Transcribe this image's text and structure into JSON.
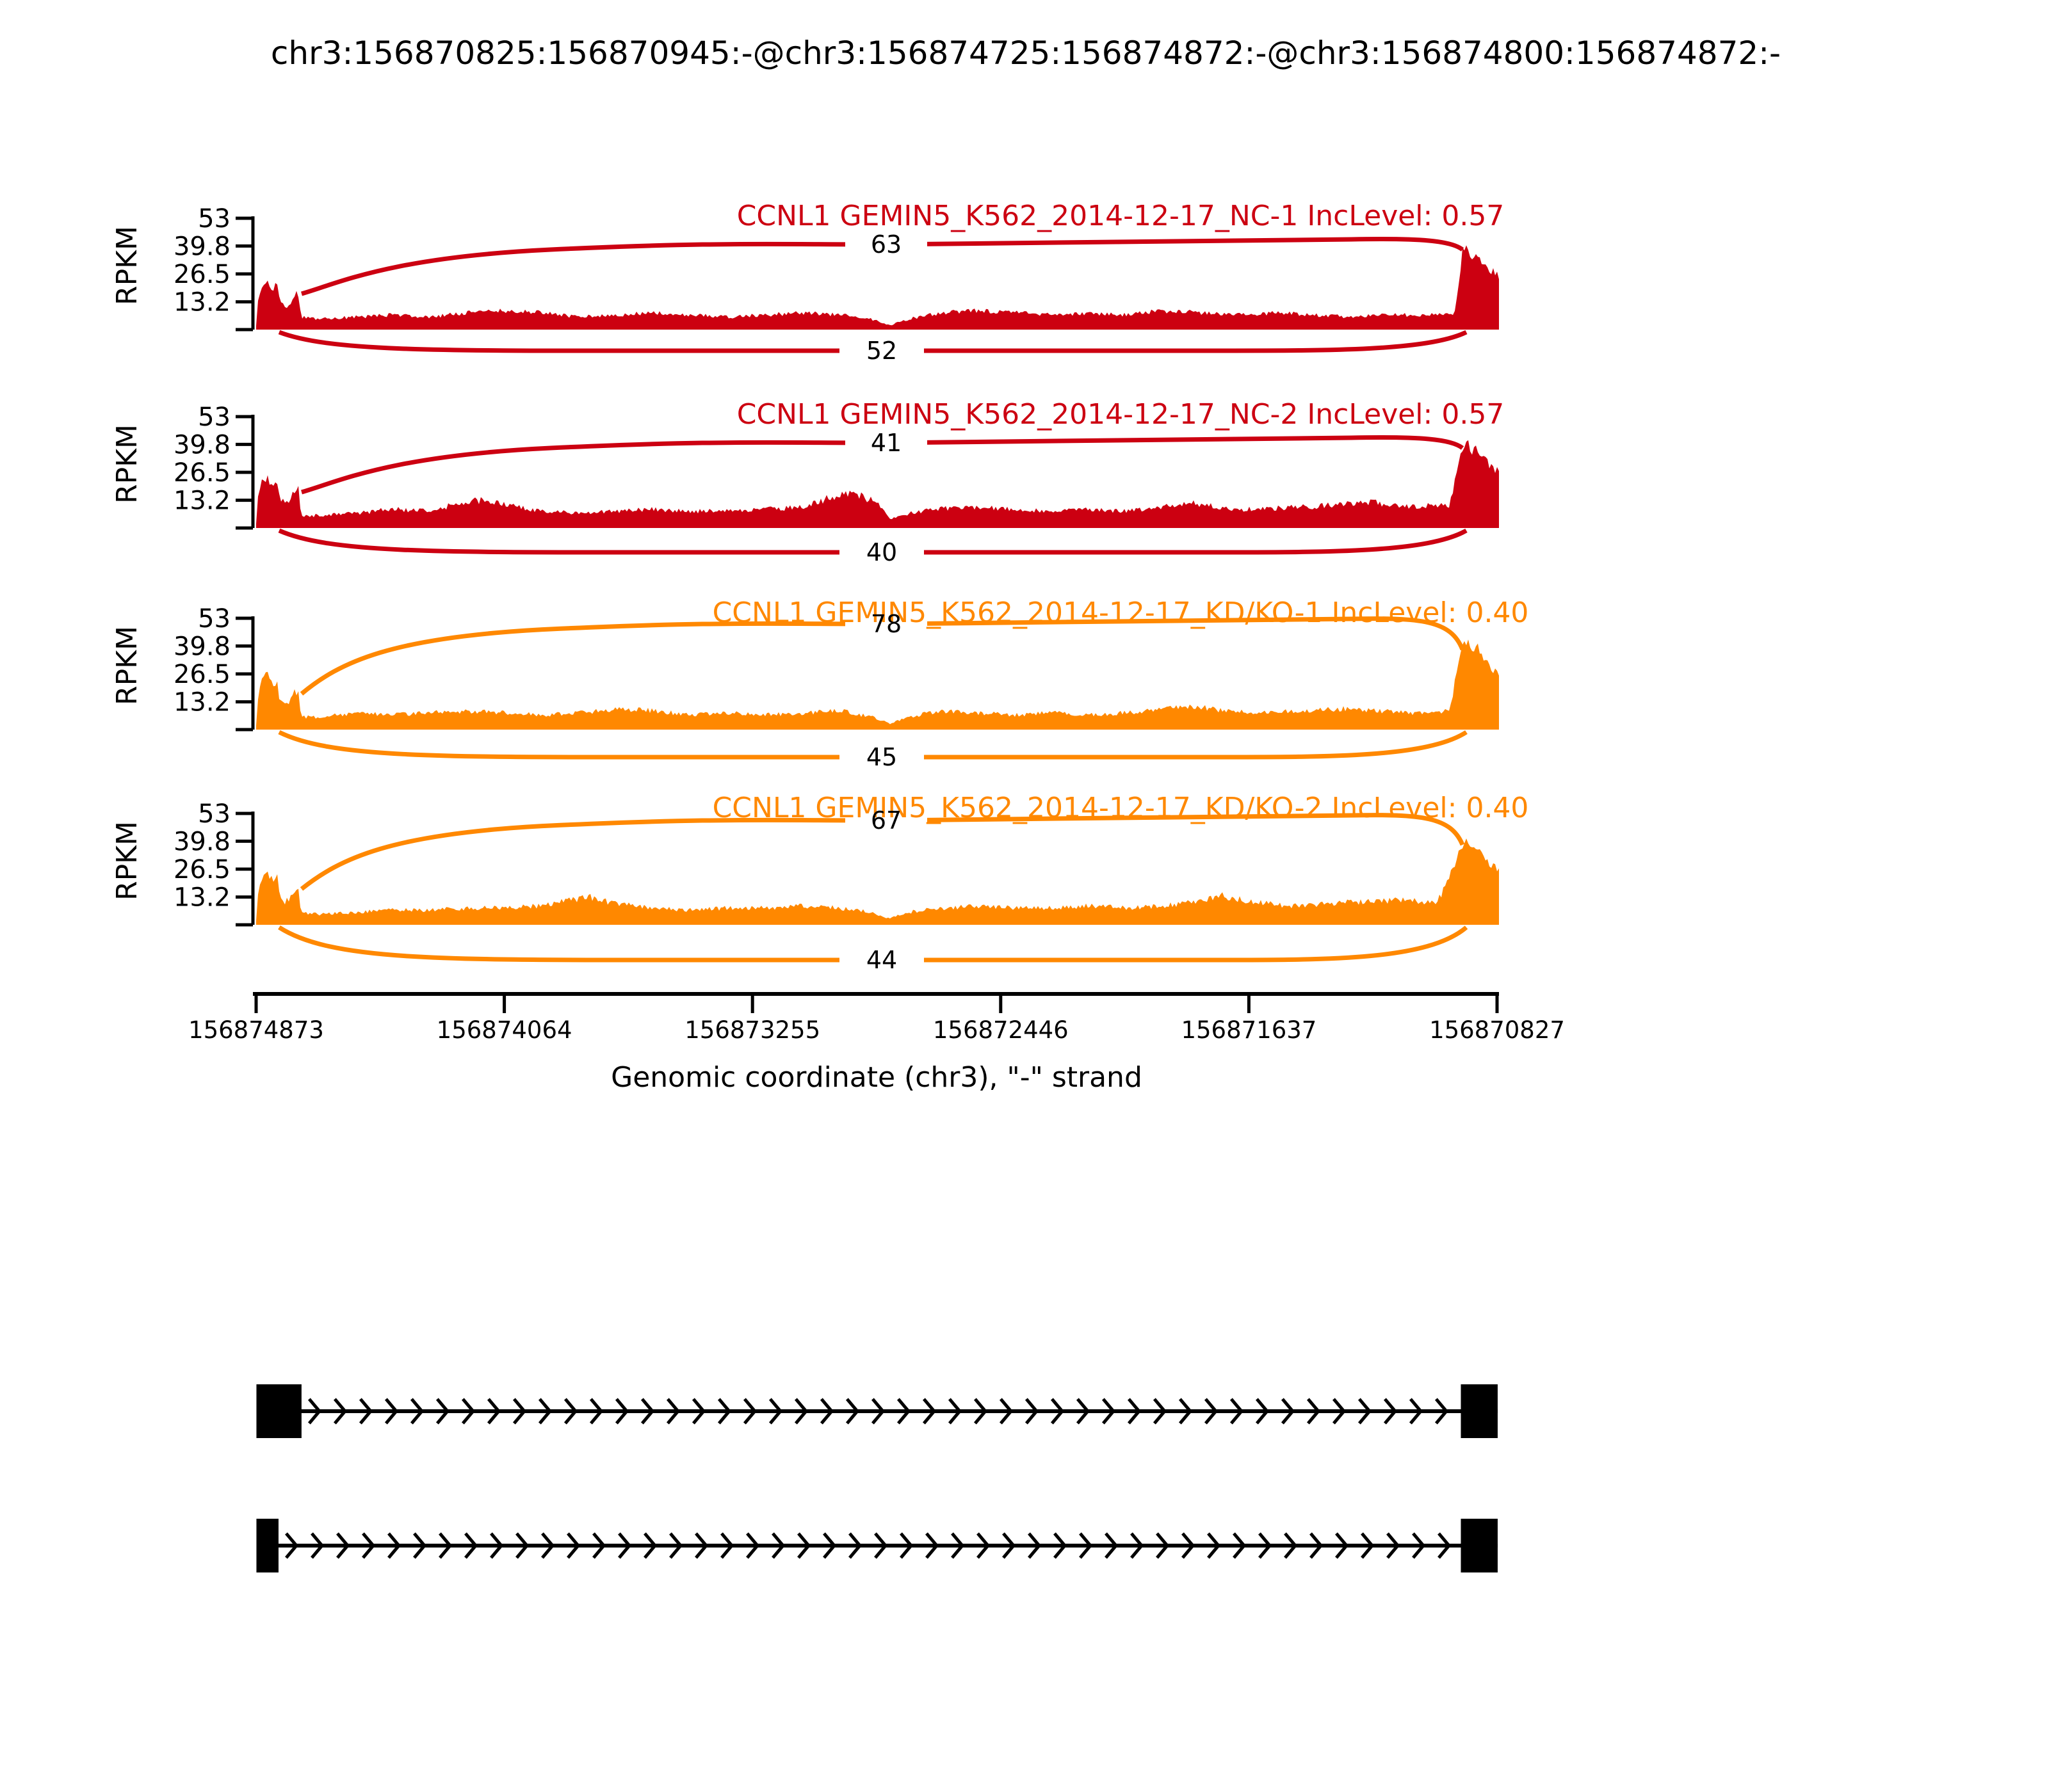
{
  "figure": {
    "title": "chr3:156870825:156870945:-@chr3:156874725:156874872:-@chr3:156874800:156874872:-",
    "background": "#ffffff",
    "text_color": "#000000"
  },
  "y_axis": {
    "label": "RPKM",
    "tick_labels": [
      "13.2",
      "26.5",
      "39.8",
      "53"
    ],
    "tick_values": [
      13.2,
      26.5,
      39.8,
      53
    ],
    "max": 53
  },
  "x_axis": {
    "label": "Genomic coordinate (chr3), \"-\" strand",
    "tick_labels": [
      "156874873",
      "156874064",
      "156873255",
      "156872446",
      "156871637",
      "156870827"
    ]
  },
  "chart_data": {
    "type": "area",
    "subtype": "rmats-sashimi",
    "gene": "CCNL1",
    "chromosome": "chr3",
    "strand": "-",
    "x_ticks_bp": [
      156874873,
      156874064,
      156873255,
      156872446,
      156871637,
      156870827
    ],
    "rpkm_ticks": [
      13.2,
      26.5,
      39.8,
      53
    ],
    "ylim": [
      0,
      53
    ],
    "nc_color": "#CC0011",
    "kd_color": "#FF8800",
    "tracks": [
      {
        "label": "CCNL1 GEMIN5_K562_2014-12-17_NC-1 IncLevel: 0.57",
        "sample": "NC-1",
        "inc_level": 0.57,
        "color": "#CC0011",
        "junction_reads_top": 63,
        "junction_reads_bottom": 52,
        "arc_top_offset": 133,
        "arc_bottom_offset": 33,
        "coverage_envelope": [
          [
            0,
            2
          ],
          [
            0.002,
            16
          ],
          [
            0.005,
            21
          ],
          [
            0.009,
            22
          ],
          [
            0.013,
            20
          ],
          [
            0.017,
            21
          ],
          [
            0.019,
            13
          ],
          [
            0.023,
            11
          ],
          [
            0.027,
            12
          ],
          [
            0.03,
            16
          ],
          [
            0.034,
            17
          ],
          [
            0.036,
            6
          ],
          [
            0.05,
            5
          ],
          [
            0.08,
            6
          ],
          [
            0.11,
            7
          ],
          [
            0.14,
            6
          ],
          [
            0.17,
            8
          ],
          [
            0.2,
            9
          ],
          [
            0.23,
            8
          ],
          [
            0.26,
            6
          ],
          [
            0.29,
            7
          ],
          [
            0.32,
            8
          ],
          [
            0.35,
            7
          ],
          [
            0.38,
            6
          ],
          [
            0.41,
            7
          ],
          [
            0.44,
            8
          ],
          [
            0.47,
            7
          ],
          [
            0.495,
            5
          ],
          [
            0.51,
            2
          ],
          [
            0.525,
            5
          ],
          [
            0.55,
            8
          ],
          [
            0.58,
            9
          ],
          [
            0.61,
            8
          ],
          [
            0.64,
            7
          ],
          [
            0.67,
            8
          ],
          [
            0.7,
            7
          ],
          [
            0.73,
            9
          ],
          [
            0.76,
            8
          ],
          [
            0.79,
            7
          ],
          [
            0.82,
            8
          ],
          [
            0.85,
            7
          ],
          [
            0.88,
            6
          ],
          [
            0.91,
            7
          ],
          [
            0.94,
            7
          ],
          [
            0.965,
            8
          ],
          [
            0.9706,
            37
          ],
          [
            0.974,
            39
          ],
          [
            0.978,
            35
          ],
          [
            0.982,
            37
          ],
          [
            0.986,
            33
          ],
          [
            0.99,
            30
          ],
          [
            0.994,
            28
          ],
          [
            1,
            25
          ]
        ]
      },
      {
        "label": "CCNL1 GEMIN5_K562_2014-12-17_NC-2 IncLevel: 0.57",
        "sample": "NC-2",
        "inc_level": 0.57,
        "color": "#CC0011",
        "junction_reads_top": 41,
        "junction_reads_bottom": 40,
        "arc_top_offset": 133,
        "arc_bottom_offset": 38,
        "coverage_envelope": [
          [
            0,
            2
          ],
          [
            0.002,
            17
          ],
          [
            0.005,
            23
          ],
          [
            0.009,
            24
          ],
          [
            0.013,
            21
          ],
          [
            0.017,
            22
          ],
          [
            0.019,
            14
          ],
          [
            0.023,
            12
          ],
          [
            0.027,
            13
          ],
          [
            0.03,
            17
          ],
          [
            0.034,
            18
          ],
          [
            0.036,
            6
          ],
          [
            0.05,
            6
          ],
          [
            0.08,
            7
          ],
          [
            0.11,
            9
          ],
          [
            0.14,
            8
          ],
          [
            0.165,
            12
          ],
          [
            0.18,
            13
          ],
          [
            0.2,
            11
          ],
          [
            0.23,
            8
          ],
          [
            0.26,
            7
          ],
          [
            0.29,
            8
          ],
          [
            0.32,
            9
          ],
          [
            0.35,
            8
          ],
          [
            0.38,
            8
          ],
          [
            0.41,
            9
          ],
          [
            0.44,
            10
          ],
          [
            0.46,
            14
          ],
          [
            0.48,
            17
          ],
          [
            0.5,
            12
          ],
          [
            0.51,
            4
          ],
          [
            0.525,
            7
          ],
          [
            0.55,
            9
          ],
          [
            0.58,
            10
          ],
          [
            0.61,
            9
          ],
          [
            0.64,
            8
          ],
          [
            0.67,
            9
          ],
          [
            0.7,
            8
          ],
          [
            0.73,
            10
          ],
          [
            0.755,
            12
          ],
          [
            0.78,
            9
          ],
          [
            0.81,
            9
          ],
          [
            0.84,
            10
          ],
          [
            0.87,
            11
          ],
          [
            0.9,
            12
          ],
          [
            0.93,
            10
          ],
          [
            0.96,
            11
          ],
          [
            0.9706,
            38
          ],
          [
            0.975,
            40
          ],
          [
            0.979,
            36
          ],
          [
            0.983,
            38
          ],
          [
            0.987,
            34
          ],
          [
            0.991,
            31
          ],
          [
            0.995,
            29
          ],
          [
            1,
            26
          ]
        ]
      },
      {
        "label": "CCNL1 GEMIN5_K562_2014-12-17_KD/KO-1 IncLevel: 0.40",
        "sample": "KD/KO-1",
        "inc_level": 0.4,
        "color": "#FF8800",
        "junction_reads_top": 78,
        "junction_reads_bottom": 45,
        "arc_top_offset": 165,
        "arc_bottom_offset": 43,
        "coverage_envelope": [
          [
            0,
            2
          ],
          [
            0.002,
            18
          ],
          [
            0.005,
            25
          ],
          [
            0.009,
            26
          ],
          [
            0.013,
            22
          ],
          [
            0.017,
            23
          ],
          [
            0.019,
            14
          ],
          [
            0.023,
            12
          ],
          [
            0.027,
            13
          ],
          [
            0.03,
            17
          ],
          [
            0.034,
            18
          ],
          [
            0.036,
            6
          ],
          [
            0.05,
            6
          ],
          [
            0.08,
            8
          ],
          [
            0.11,
            7
          ],
          [
            0.14,
            8
          ],
          [
            0.17,
            9
          ],
          [
            0.2,
            8
          ],
          [
            0.23,
            7
          ],
          [
            0.26,
            8
          ],
          [
            0.29,
            10
          ],
          [
            0.32,
            9
          ],
          [
            0.35,
            7
          ],
          [
            0.38,
            8
          ],
          [
            0.41,
            7
          ],
          [
            0.44,
            8
          ],
          [
            0.47,
            9
          ],
          [
            0.495,
            6
          ],
          [
            0.51,
            3
          ],
          [
            0.525,
            6
          ],
          [
            0.55,
            9
          ],
          [
            0.58,
            8
          ],
          [
            0.61,
            7
          ],
          [
            0.64,
            8
          ],
          [
            0.67,
            7
          ],
          [
            0.7,
            8
          ],
          [
            0.73,
            10
          ],
          [
            0.755,
            11
          ],
          [
            0.78,
            9
          ],
          [
            0.81,
            8
          ],
          [
            0.84,
            9
          ],
          [
            0.87,
            10
          ],
          [
            0.9,
            9
          ],
          [
            0.93,
            8
          ],
          [
            0.96,
            9
          ],
          [
            0.9706,
            40
          ],
          [
            0.975,
            42
          ],
          [
            0.979,
            37
          ],
          [
            0.983,
            39
          ],
          [
            0.987,
            34
          ],
          [
            0.991,
            31
          ],
          [
            0.995,
            29
          ],
          [
            1,
            27
          ]
        ]
      },
      {
        "label": "CCNL1 GEMIN5_K562_2014-12-17_KD/KO-2 IncLevel: 0.40",
        "sample": "KD/KO-2",
        "inc_level": 0.4,
        "color": "#FF8800",
        "junction_reads_top": 67,
        "junction_reads_bottom": 44,
        "arc_top_offset": 163,
        "arc_bottom_offset": 55,
        "coverage_envelope": [
          [
            0,
            2
          ],
          [
            0.002,
            17
          ],
          [
            0.005,
            24
          ],
          [
            0.009,
            25
          ],
          [
            0.013,
            21
          ],
          [
            0.017,
            22
          ],
          [
            0.019,
            13
          ],
          [
            0.023,
            11
          ],
          [
            0.027,
            12
          ],
          [
            0.03,
            16
          ],
          [
            0.034,
            17
          ],
          [
            0.036,
            6
          ],
          [
            0.05,
            5
          ],
          [
            0.08,
            6
          ],
          [
            0.11,
            7
          ],
          [
            0.14,
            7
          ],
          [
            0.17,
            8
          ],
          [
            0.2,
            8
          ],
          [
            0.23,
            9
          ],
          [
            0.255,
            12
          ],
          [
            0.27,
            13
          ],
          [
            0.29,
            10
          ],
          [
            0.32,
            8
          ],
          [
            0.35,
            7
          ],
          [
            0.38,
            8
          ],
          [
            0.41,
            8
          ],
          [
            0.44,
            9
          ],
          [
            0.47,
            8
          ],
          [
            0.495,
            6
          ],
          [
            0.51,
            3
          ],
          [
            0.525,
            6
          ],
          [
            0.55,
            8
          ],
          [
            0.58,
            9
          ],
          [
            0.61,
            8
          ],
          [
            0.64,
            8
          ],
          [
            0.67,
            9
          ],
          [
            0.7,
            8
          ],
          [
            0.73,
            9
          ],
          [
            0.755,
            11
          ],
          [
            0.775,
            14
          ],
          [
            0.8,
            11
          ],
          [
            0.83,
            9
          ],
          [
            0.86,
            10
          ],
          [
            0.89,
            11
          ],
          [
            0.92,
            12
          ],
          [
            0.95,
            10
          ],
          [
            0.9706,
            38
          ],
          [
            0.975,
            40
          ],
          [
            0.979,
            36
          ],
          [
            0.983,
            37
          ],
          [
            0.987,
            33
          ],
          [
            0.991,
            30
          ],
          [
            0.995,
            28
          ],
          [
            1,
            26
          ]
        ]
      }
    ],
    "isoforms": [
      {
        "exons_bp": [
          [
            156874725,
            156874872
          ],
          [
            156870825,
            156870945
          ]
        ]
      },
      {
        "exons_bp": [
          [
            156874800,
            156874872
          ],
          [
            156870825,
            156870945
          ]
        ]
      }
    ]
  }
}
